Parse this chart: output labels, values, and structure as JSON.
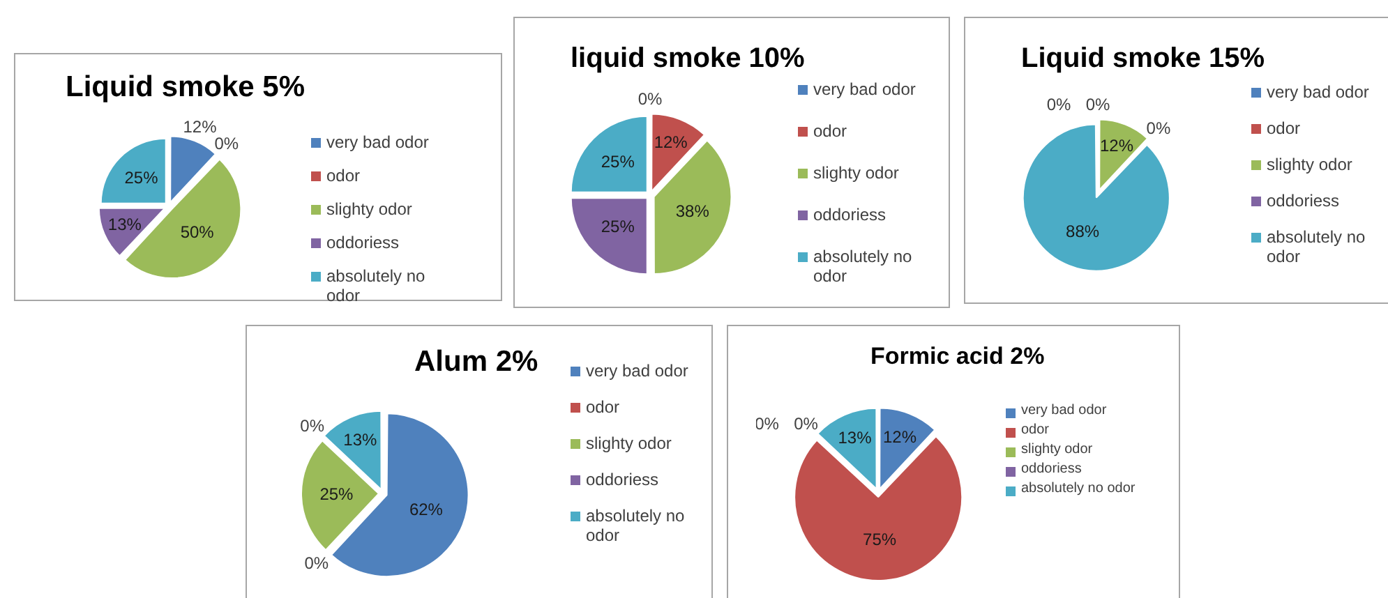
{
  "chart_data": [
    {
      "type": "pie",
      "title": "Liquid smoke 5%",
      "categories": [
        "very bad odor",
        "odor",
        "slighty odor",
        "oddoriess",
        "absolutely no odor"
      ],
      "values": [
        12,
        0,
        50,
        13,
        25
      ],
      "value_labels": [
        "12%",
        "0%",
        "50%",
        "13%",
        "25%"
      ],
      "colors": [
        "#4f81bd",
        "#c0504d",
        "#9bbb59",
        "#8064a2",
        "#4bacc6"
      ],
      "legend": "right"
    },
    {
      "type": "pie",
      "title": "liquid smoke 10%",
      "categories": [
        "very bad odor",
        "odor",
        "slighty odor",
        "oddoriess",
        "absolutely no odor"
      ],
      "values": [
        0,
        12,
        38,
        25,
        25
      ],
      "value_labels": [
        "0%",
        "12%",
        "38%",
        "25%",
        "25%"
      ],
      "colors": [
        "#4f81bd",
        "#c0504d",
        "#9bbb59",
        "#8064a2",
        "#4bacc6"
      ],
      "legend": "right"
    },
    {
      "type": "pie",
      "title": "Liquid smoke 15%",
      "categories": [
        "very bad odor",
        "odor",
        "slighty odor",
        "oddoriess",
        "absolutely no odor"
      ],
      "values": [
        0,
        0,
        12,
        0,
        88
      ],
      "value_labels": [
        "0%",
        "0%",
        "12%",
        "0%",
        "88%"
      ],
      "colors": [
        "#4f81bd",
        "#c0504d",
        "#9bbb59",
        "#8064a2",
        "#4bacc6"
      ],
      "legend": "right"
    },
    {
      "type": "pie",
      "title": "Alum 2%",
      "categories": [
        "very bad odor",
        "odor",
        "slighty odor",
        "oddoriess",
        "absolutely no odor"
      ],
      "values": [
        62,
        0,
        25,
        0,
        13
      ],
      "value_labels": [
        "62%",
        "0%",
        "25%",
        "0%",
        "13%"
      ],
      "colors": [
        "#4f81bd",
        "#c0504d",
        "#9bbb59",
        "#8064a2",
        "#4bacc6"
      ],
      "legend": "right"
    },
    {
      "type": "pie",
      "title": "Formic acid 2%",
      "categories": [
        "very bad odor",
        "odor",
        "slighty odor",
        "oddoriess",
        "absolutely no odor"
      ],
      "values": [
        12,
        75,
        0,
        0,
        13
      ],
      "value_labels": [
        "12%",
        "75%",
        "0%",
        "0%",
        "13%"
      ],
      "colors": [
        "#4f81bd",
        "#c0504d",
        "#9bbb59",
        "#8064a2",
        "#4bacc6"
      ],
      "legend": "right"
    }
  ]
}
